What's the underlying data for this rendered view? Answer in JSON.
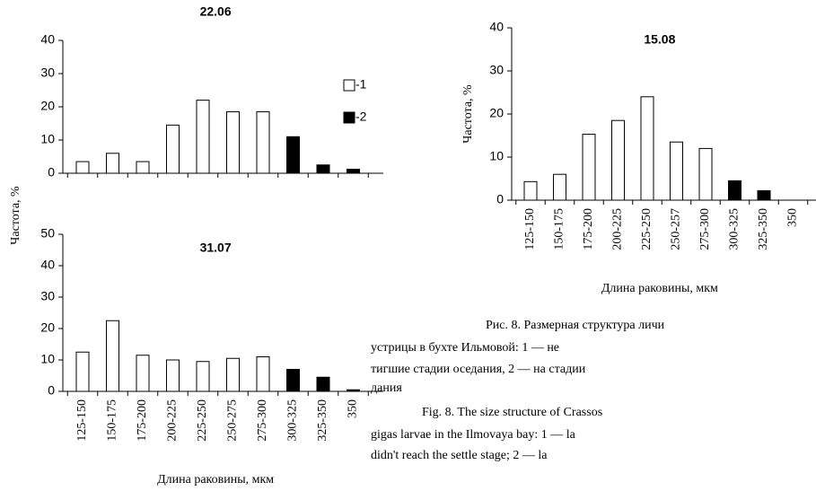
{
  "chart_data": [
    {
      "type": "bar",
      "title": "22.06",
      "ylabel": "Частота, %",
      "series": [
        {
          "name": "-1",
          "color": "#ffffff",
          "values": [
            3.5,
            6,
            3.5,
            14.5,
            22,
            18.5,
            18.5,
            null,
            null,
            null
          ]
        },
        {
          "name": "-2",
          "color": "#000000",
          "values": [
            null,
            null,
            null,
            null,
            null,
            null,
            null,
            11,
            2.5,
            1.2
          ]
        }
      ],
      "ylim": [
        0,
        40
      ],
      "yticks": [
        0,
        10,
        20,
        30,
        40
      ],
      "legend": "right"
    },
    {
      "type": "bar",
      "title": "31.07",
      "xlabel": "Длина раковины, мкм",
      "categories": [
        "125-150",
        "150-175",
        "175-200",
        "200-225",
        "225-250",
        "250-275",
        "275-300",
        "300-325",
        "325-350",
        "350"
      ],
      "series": [
        {
          "color": "#ffffff",
          "values": [
            12.5,
            22.5,
            11.5,
            10,
            9.5,
            10.5,
            11,
            null,
            null,
            null
          ]
        },
        {
          "color": "#000000",
          "values": [
            null,
            null,
            null,
            null,
            null,
            null,
            null,
            7,
            4.5,
            0.5
          ]
        }
      ],
      "ylim": [
        0,
        50
      ],
      "yticks": [
        0,
        10,
        20,
        30,
        40,
        50
      ]
    },
    {
      "type": "bar",
      "title": "15.08",
      "ylabel": "Частота, %",
      "xlabel": "Длина раковины, мкм",
      "categories": [
        "125-150",
        "150-175",
        "175-200",
        "200-225",
        "225-250",
        "250-257",
        "275-300",
        "300-325",
        "325-350",
        "350"
      ],
      "series": [
        {
          "color": "#ffffff",
          "values": [
            4.3,
            6,
            15.3,
            18.5,
            24,
            13.5,
            12,
            null,
            null,
            null
          ]
        },
        {
          "color": "#000000",
          "values": [
            null,
            null,
            null,
            null,
            null,
            null,
            null,
            4.5,
            2.2,
            null
          ]
        }
      ],
      "ylim": [
        0,
        40
      ],
      "yticks": [
        0,
        10,
        20,
        30,
        40
      ]
    }
  ],
  "caption": {
    "lines": [
      "Рис. 8. Размерная структура личи",
      "устрицы в бухте Ильмовой: 1 — не",
      "тигшие стадии оседания, 2 — на стадии",
      "дания",
      "Fig. 8. The size structure of Crassos",
      "gigas larvae in the Ilmovaya bay: 1 — la",
      "didn't reach the settle stage; 2 — la"
    ]
  }
}
